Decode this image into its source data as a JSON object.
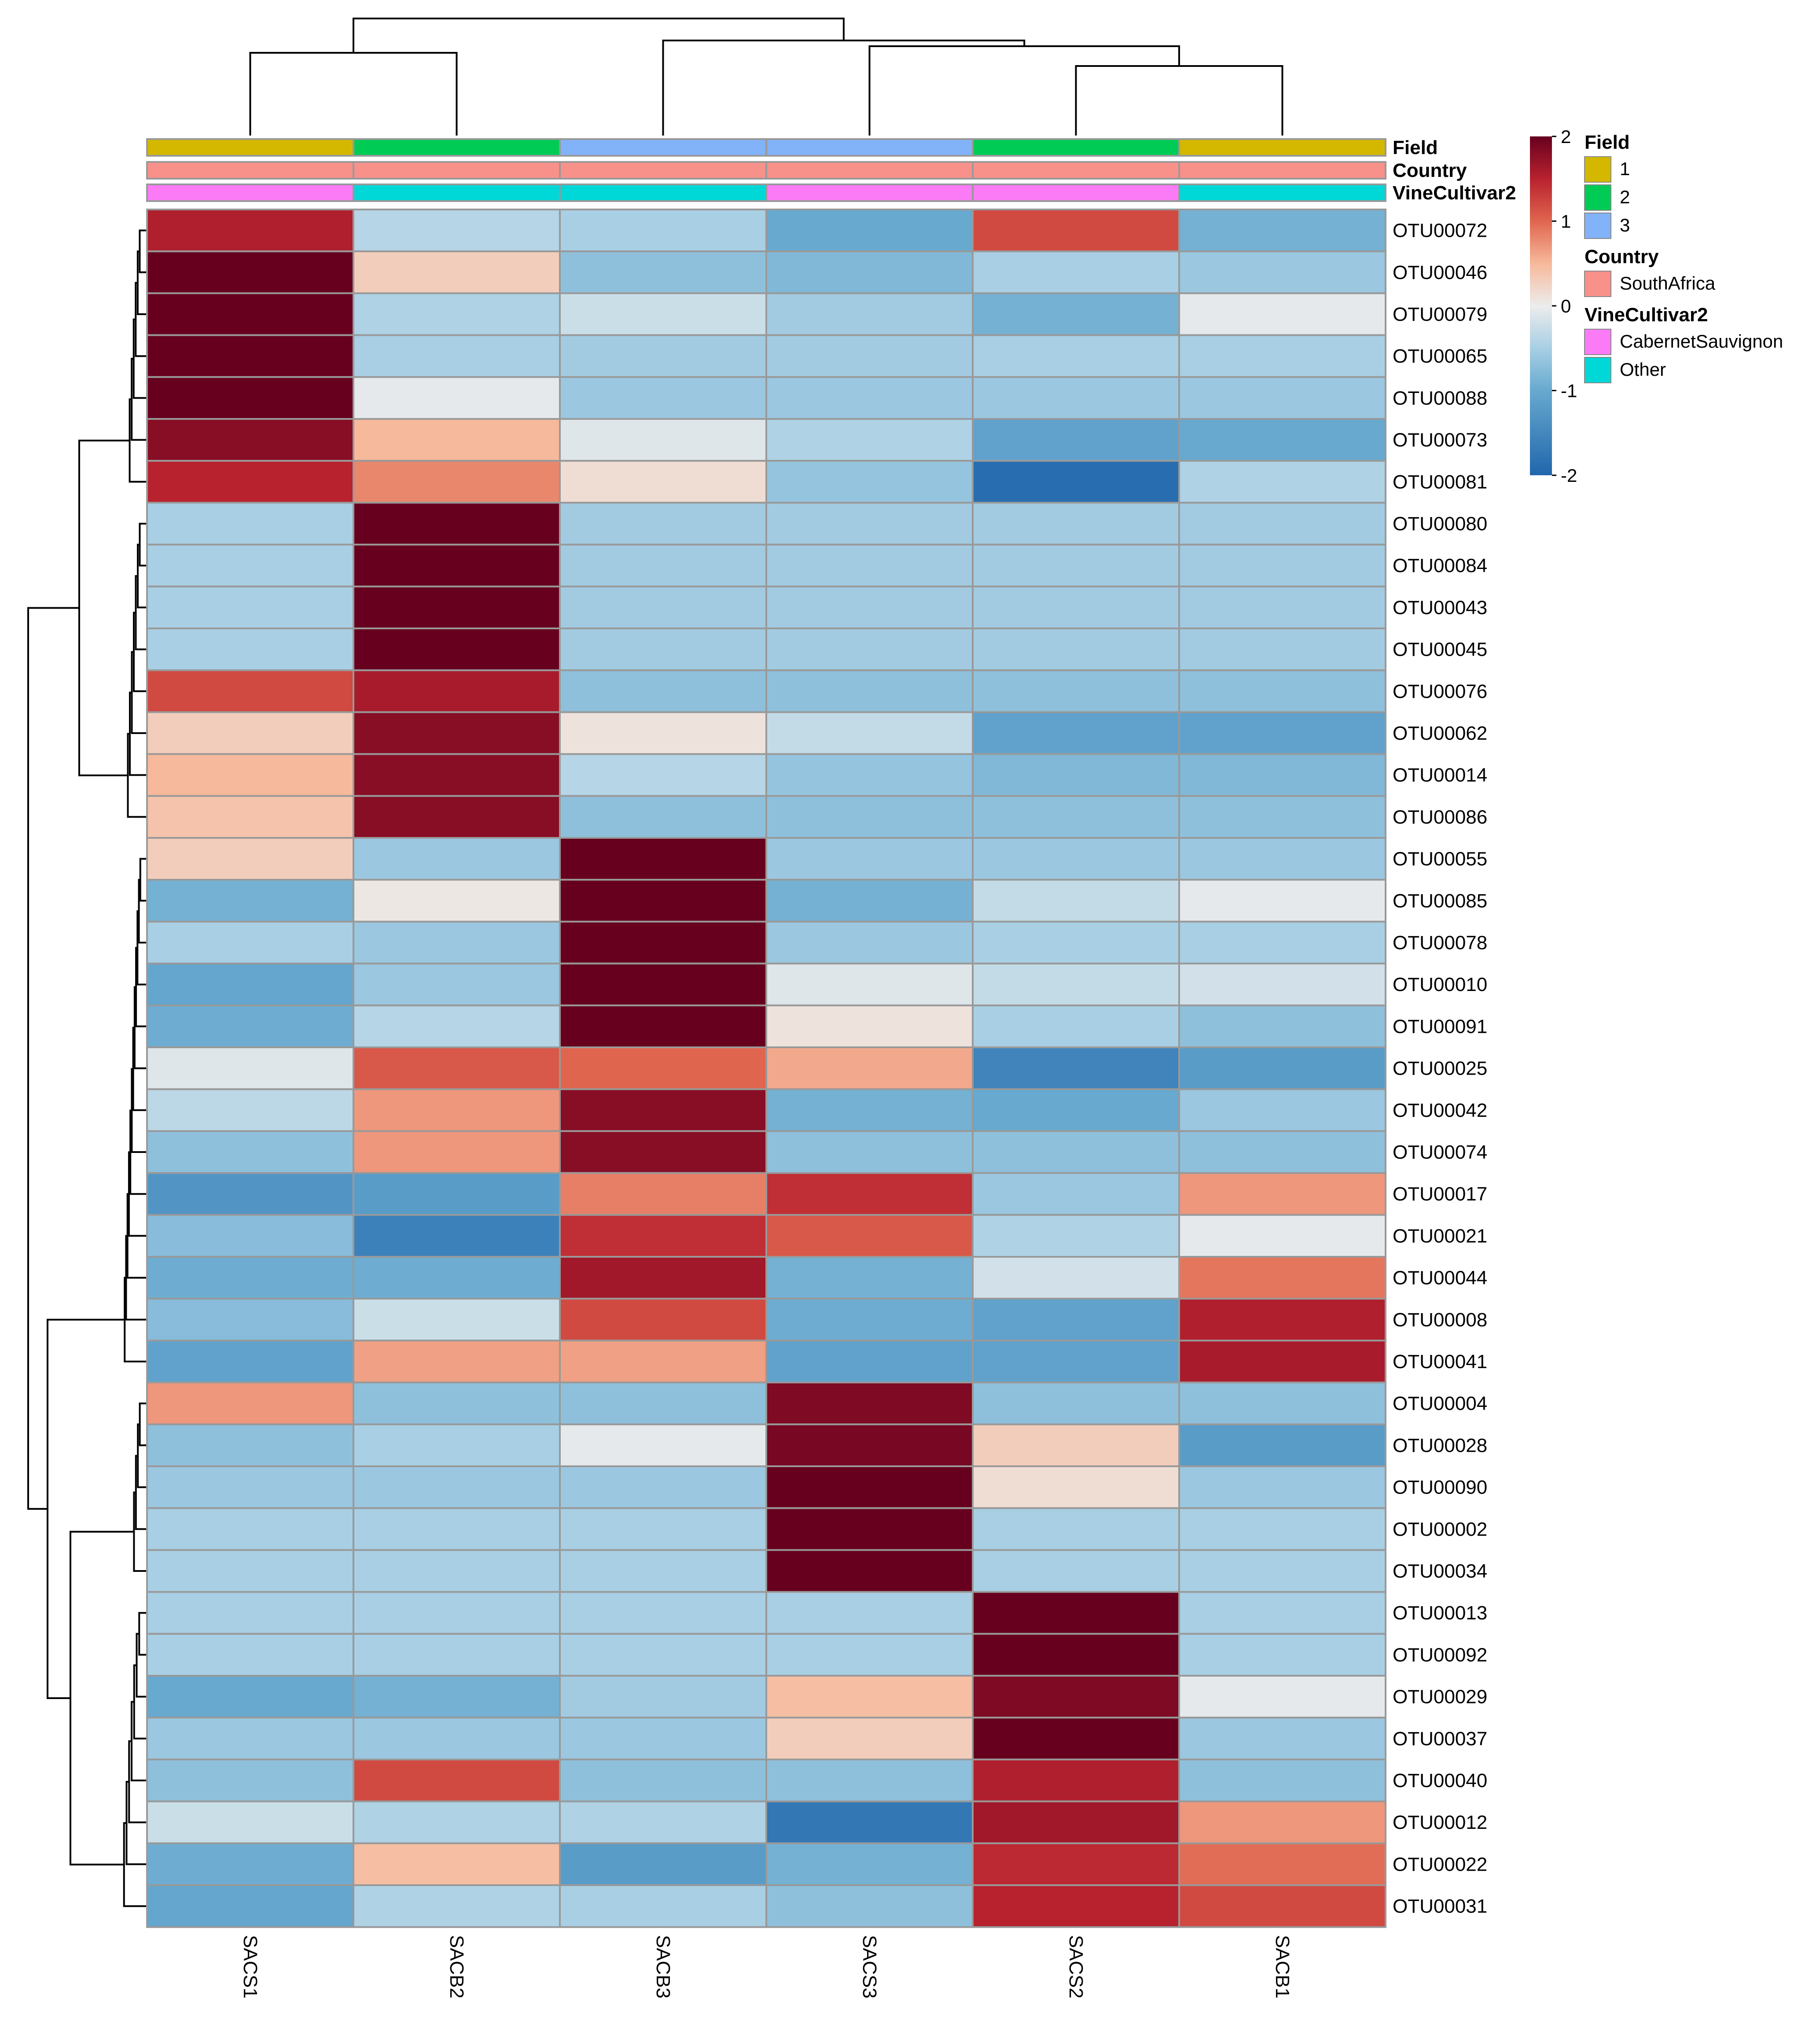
{
  "chart_data": {
    "type": "heatmap",
    "title": "",
    "columns": [
      "SACS1",
      "SACB2",
      "SACB3",
      "SACS3",
      "SACS2",
      "SACB1"
    ],
    "rows": [
      "OTU00072",
      "OTU00046",
      "OTU00079",
      "OTU00065",
      "OTU00088",
      "OTU00073",
      "OTU00081",
      "OTU00080",
      "OTU00084",
      "OTU00043",
      "OTU00045",
      "OTU00076",
      "OTU00062",
      "OTU00014",
      "OTU00086",
      "OTU00055",
      "OTU00085",
      "OTU00078",
      "OTU00010",
      "OTU00091",
      "OTU00025",
      "OTU00042",
      "OTU00074",
      "OTU00017",
      "OTU00021",
      "OTU00044",
      "OTU00008",
      "OTU00041",
      "OTU00004",
      "OTU00028",
      "OTU00090",
      "OTU00002",
      "OTU00034",
      "OTU00013",
      "OTU00092",
      "OTU00029",
      "OTU00037",
      "OTU00040",
      "OTU00012",
      "OTU00022",
      "OTU00031"
    ],
    "values": [
      [
        1.55,
        -0.4,
        -0.5,
        -1.0,
        1.2,
        -0.9
      ],
      [
        2.0,
        0.3,
        -0.7,
        -0.8,
        -0.5,
        -0.6
      ],
      [
        2.0,
        -0.45,
        -0.25,
        -0.55,
        -0.9,
        -0.05
      ],
      [
        2.0,
        -0.5,
        -0.55,
        -0.55,
        -0.5,
        -0.5
      ],
      [
        2.0,
        -0.05,
        -0.6,
        -0.6,
        -0.6,
        -0.6
      ],
      [
        1.8,
        0.5,
        -0.1,
        -0.45,
        -1.1,
        -1.0
      ],
      [
        1.5,
        0.8,
        0.15,
        -0.65,
        -1.9,
        -0.45
      ],
      [
        -0.5,
        2.0,
        -0.55,
        -0.55,
        -0.55,
        -0.55
      ],
      [
        -0.5,
        2.0,
        -0.55,
        -0.55,
        -0.55,
        -0.55
      ],
      [
        -0.5,
        2.0,
        -0.55,
        -0.55,
        -0.55,
        -0.55
      ],
      [
        -0.5,
        2.0,
        -0.55,
        -0.55,
        -0.55,
        -0.55
      ],
      [
        1.2,
        1.6,
        -0.7,
        -0.7,
        -0.7,
        -0.7
      ],
      [
        0.3,
        1.8,
        0.1,
        -0.3,
        -1.1,
        -1.1
      ],
      [
        0.5,
        1.8,
        -0.4,
        -0.65,
        -0.8,
        -0.8
      ],
      [
        0.4,
        1.8,
        -0.7,
        -0.7,
        -0.7,
        -0.7
      ],
      [
        0.3,
        -0.6,
        2.0,
        -0.6,
        -0.6,
        -0.6
      ],
      [
        -0.9,
        0.05,
        2.0,
        -0.9,
        -0.3,
        -0.05
      ],
      [
        -0.5,
        -0.6,
        2.0,
        -0.6,
        -0.5,
        -0.5
      ],
      [
        -1.05,
        -0.6,
        2.0,
        -0.1,
        -0.3,
        -0.2
      ],
      [
        -0.95,
        -0.4,
        2.0,
        0.1,
        -0.5,
        -0.7
      ],
      [
        -0.1,
        1.1,
        1.0,
        0.6,
        -1.55,
        -1.2
      ],
      [
        -0.35,
        0.7,
        1.8,
        -0.9,
        -1.0,
        -0.6
      ],
      [
        -0.7,
        0.7,
        1.8,
        -0.7,
        -0.7,
        -0.7
      ],
      [
        -1.3,
        -1.2,
        0.85,
        1.4,
        -0.6,
        0.7
      ],
      [
        -0.75,
        -1.6,
        1.4,
        1.1,
        -0.45,
        -0.05
      ],
      [
        -0.95,
        -0.95,
        1.65,
        -0.9,
        -0.2,
        0.9
      ],
      [
        -0.75,
        -0.25,
        1.2,
        -0.95,
        -1.1,
        1.55
      ],
      [
        -1.1,
        0.65,
        0.65,
        -1.1,
        -1.1,
        1.6
      ],
      [
        0.7,
        -0.7,
        -0.7,
        1.85,
        -0.7,
        -0.7
      ],
      [
        -0.7,
        -0.5,
        -0.05,
        1.9,
        0.3,
        -1.2
      ],
      [
        -0.6,
        -0.6,
        -0.6,
        2.0,
        0.15,
        -0.6
      ],
      [
        -0.5,
        -0.5,
        -0.5,
        2.0,
        -0.5,
        -0.5
      ],
      [
        -0.5,
        -0.5,
        -0.5,
        2.0,
        -0.5,
        -0.5
      ],
      [
        -0.5,
        -0.5,
        -0.5,
        -0.5,
        2.0,
        -0.5
      ],
      [
        -0.5,
        -0.5,
        -0.5,
        -0.5,
        2.0,
        -0.5
      ],
      [
        -1.0,
        -0.9,
        -0.55,
        0.45,
        1.85,
        -0.05
      ],
      [
        -0.6,
        -0.6,
        -0.6,
        0.3,
        2.0,
        -0.6
      ],
      [
        -0.7,
        1.2,
        -0.7,
        -0.7,
        1.55,
        -0.7
      ],
      [
        -0.25,
        -0.45,
        -0.45,
        -1.75,
        1.65,
        0.7
      ],
      [
        -0.95,
        0.45,
        -1.2,
        -0.9,
        1.45,
        0.95
      ],
      [
        -1.05,
        -0.45,
        -0.5,
        -0.7,
        1.5,
        1.2
      ]
    ],
    "color_scale": {
      "min": -2,
      "max": 2,
      "stops": [
        {
          "value": -2.0,
          "color": "#2166ac"
        },
        {
          "value": -1.0,
          "color": "#67a9cf"
        },
        {
          "value": -0.5,
          "color": "#a8cfe4"
        },
        {
          "value": 0.0,
          "color": "#ececec"
        },
        {
          "value": 0.5,
          "color": "#f7b99b"
        },
        {
          "value": 1.0,
          "color": "#e0654f"
        },
        {
          "value": 1.5,
          "color": "#b8222f"
        },
        {
          "value": 2.0,
          "color": "#67001f"
        }
      ],
      "ticks": [
        "2",
        "1",
        "0",
        "-1",
        "-2"
      ]
    },
    "annotations": [
      {
        "name": "Field",
        "values": [
          "1",
          "2",
          "3",
          "3",
          "2",
          "1"
        ]
      },
      {
        "name": "Country",
        "values": [
          "SouthAfrica",
          "SouthAfrica",
          "SouthAfrica",
          "SouthAfrica",
          "SouthAfrica",
          "SouthAfrica"
        ]
      },
      {
        "name": "VineCultivar2",
        "values": [
          "CabernetSauvignon",
          "Other",
          "Other",
          "CabernetSauvignon",
          "CabernetSauvignon",
          "Other"
        ]
      }
    ],
    "legend": [
      {
        "title": "Field",
        "items": [
          {
            "label": "1",
            "color": "#d4b800"
          },
          {
            "label": "2",
            "color": "#00cc55"
          },
          {
            "label": "3",
            "color": "#82b2f7"
          }
        ]
      },
      {
        "title": "Country",
        "items": [
          {
            "label": "SouthAfrica",
            "color": "#f8918a"
          }
        ]
      },
      {
        "title": "VineCultivar2",
        "items": [
          {
            "label": "CabernetSauvignon",
            "color": "#fb7bf7"
          },
          {
            "label": "Other",
            "color": "#00d7d7"
          }
        ]
      }
    ],
    "legend_position": "right",
    "cell_border_color": "#999999",
    "dendrogram_color": "#000000"
  }
}
